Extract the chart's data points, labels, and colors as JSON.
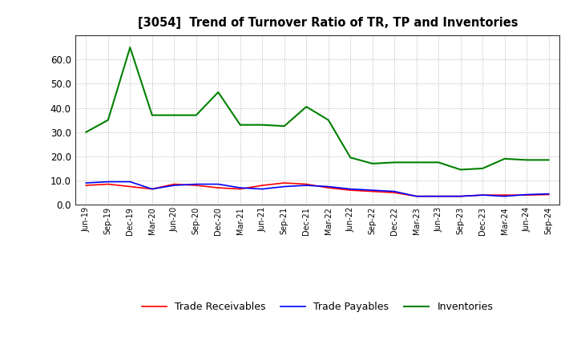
{
  "title": "[3054]  Trend of Turnover Ratio of TR, TP and Inventories",
  "x_labels": [
    "Jun-19",
    "Sep-19",
    "Dec-19",
    "Mar-20",
    "Jun-20",
    "Sep-20",
    "Dec-20",
    "Mar-21",
    "Jun-21",
    "Sep-21",
    "Dec-21",
    "Mar-22",
    "Jun-22",
    "Sep-22",
    "Dec-22",
    "Mar-23",
    "Jun-23",
    "Sep-23",
    "Dec-23",
    "Mar-24",
    "Jun-24",
    "Sep-24"
  ],
  "trade_receivables": [
    8.0,
    8.5,
    7.5,
    6.5,
    8.5,
    8.0,
    7.0,
    6.5,
    8.0,
    9.0,
    8.5,
    7.0,
    6.0,
    5.5,
    5.0,
    3.5,
    3.5,
    3.5,
    4.0,
    4.0,
    4.0,
    4.2
  ],
  "trade_payables": [
    9.0,
    9.5,
    9.5,
    6.5,
    8.0,
    8.5,
    8.5,
    7.0,
    6.5,
    7.5,
    8.0,
    7.5,
    6.5,
    6.0,
    5.5,
    3.5,
    3.5,
    3.5,
    4.0,
    3.5,
    4.2,
    4.5
  ],
  "inventories": [
    30.0,
    35.0,
    65.0,
    37.0,
    37.0,
    37.0,
    46.5,
    33.0,
    33.0,
    32.5,
    40.5,
    35.0,
    19.5,
    17.0,
    17.5,
    17.5,
    17.5,
    14.5,
    15.0,
    19.0,
    18.5,
    18.5
  ],
  "ylim": [
    0.0,
    70.0
  ],
  "yticks": [
    0.0,
    10.0,
    20.0,
    30.0,
    40.0,
    50.0,
    60.0
  ],
  "colors": {
    "trade_receivables": "#ff0000",
    "trade_payables": "#0000ff",
    "inventories": "#008000"
  },
  "legend_labels": [
    "Trade Receivables",
    "Trade Payables",
    "Inventories"
  ],
  "background_color": "#ffffff",
  "grid_color": "#999999"
}
